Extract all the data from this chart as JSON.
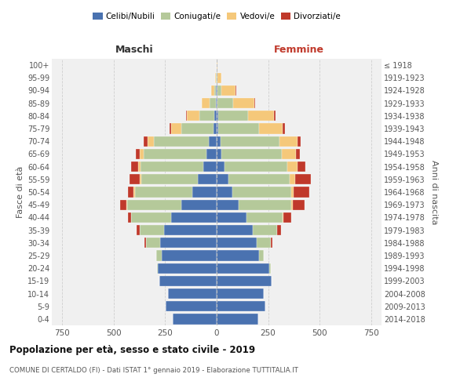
{
  "age_groups": [
    "0-4",
    "5-9",
    "10-14",
    "15-19",
    "20-24",
    "25-29",
    "30-34",
    "35-39",
    "40-44",
    "45-49",
    "50-54",
    "55-59",
    "60-64",
    "65-69",
    "70-74",
    "75-79",
    "80-84",
    "85-89",
    "90-94",
    "95-99",
    "100+"
  ],
  "birth_years": [
    "2014-2018",
    "2009-2013",
    "2004-2008",
    "1999-2003",
    "1994-1998",
    "1989-1993",
    "1984-1988",
    "1979-1983",
    "1974-1978",
    "1969-1973",
    "1964-1968",
    "1959-1963",
    "1954-1958",
    "1949-1953",
    "1944-1948",
    "1939-1943",
    "1934-1938",
    "1929-1933",
    "1924-1928",
    "1919-1923",
    "≤ 1918"
  ],
  "colors": {
    "celibe": "#4a72b0",
    "coniugato": "#b5c99a",
    "vedovo": "#f5c87a",
    "divorziato": "#c0392b"
  },
  "maschi": {
    "celibe": [
      215,
      248,
      238,
      278,
      285,
      265,
      275,
      255,
      220,
      170,
      120,
      90,
      65,
      50,
      40,
      15,
      10,
      5,
      2,
      0,
      0
    ],
    "coniugato": [
      0,
      0,
      0,
      2,
      5,
      28,
      68,
      118,
      195,
      265,
      275,
      275,
      305,
      305,
      265,
      155,
      75,
      28,
      8,
      2,
      0
    ],
    "vedovo": [
      0,
      0,
      0,
      0,
      0,
      0,
      1,
      2,
      2,
      4,
      7,
      8,
      12,
      18,
      32,
      52,
      58,
      38,
      18,
      5,
      0
    ],
    "divorziato": [
      0,
      0,
      0,
      0,
      0,
      0,
      5,
      14,
      14,
      28,
      28,
      48,
      32,
      18,
      18,
      8,
      4,
      0,
      0,
      0,
      0
    ]
  },
  "femmine": {
    "nubile": [
      202,
      238,
      228,
      265,
      255,
      205,
      195,
      175,
      145,
      105,
      75,
      58,
      38,
      22,
      18,
      9,
      7,
      4,
      2,
      0,
      0
    ],
    "coniugata": [
      0,
      0,
      0,
      2,
      8,
      22,
      68,
      118,
      175,
      255,
      285,
      295,
      305,
      295,
      285,
      195,
      145,
      75,
      22,
      4,
      0
    ],
    "vedova": [
      0,
      0,
      0,
      0,
      0,
      0,
      1,
      2,
      4,
      8,
      14,
      28,
      48,
      68,
      88,
      115,
      125,
      105,
      68,
      18,
      2
    ],
    "divorziata": [
      0,
      0,
      0,
      0,
      0,
      2,
      8,
      18,
      38,
      58,
      75,
      75,
      38,
      18,
      18,
      12,
      7,
      4,
      2,
      0,
      0
    ]
  },
  "xlim": 800,
  "xticks": [
    -750,
    -500,
    -250,
    0,
    250,
    500,
    750
  ],
  "title": "Popolazione per età, sesso e stato civile - 2019",
  "subtitle": "COMUNE DI CERTALDO (FI) - Dati ISTAT 1° gennaio 2019 - Elaborazione TUTTITALIA.IT",
  "ylabel_left": "Fasce di età",
  "ylabel_right": "Anni di nascita",
  "xlabel_left": "Maschi",
  "xlabel_right": "Femmine",
  "bg_color": "#f0f0f0",
  "grid_color": "#cccccc"
}
